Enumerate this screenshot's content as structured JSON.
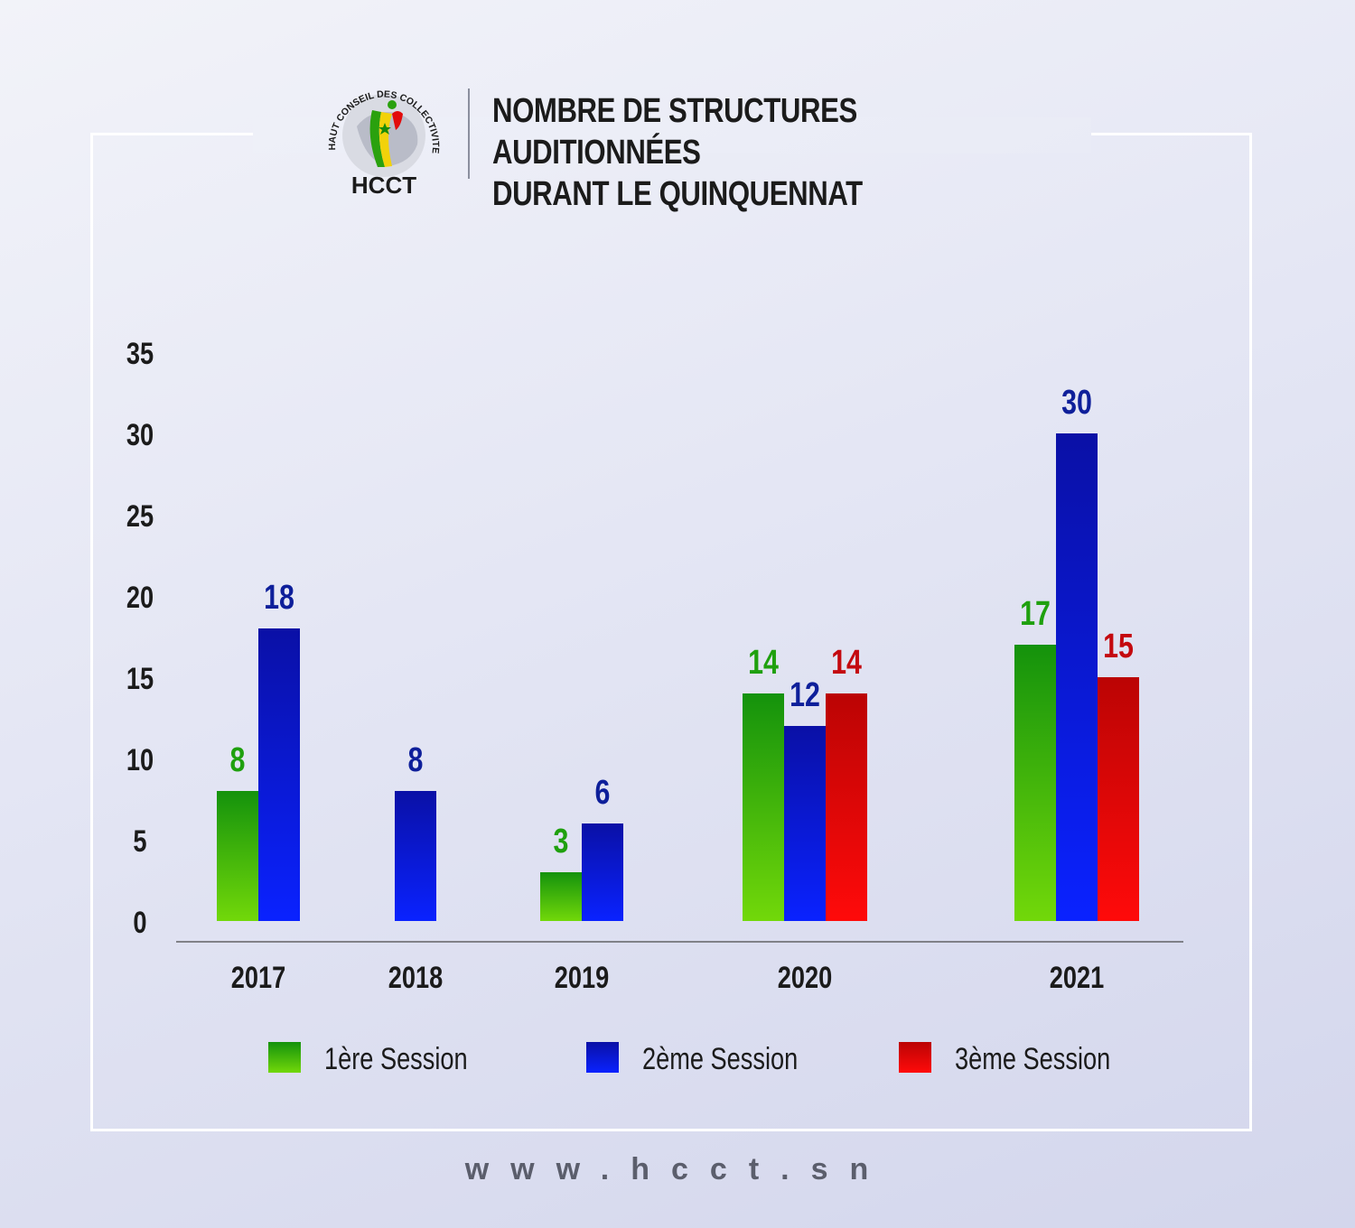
{
  "header": {
    "title_line1": "NOMBRE DE STRUCTURES AUDITIONNÉES",
    "title_line2": "DURANT LE QUINQUENNAT",
    "logo_text": "HCCT",
    "logo_ring_text": "HAUT CONSEIL DES COLLECTIVITES TERRITORIALES"
  },
  "colors": {
    "session1": "#2aa10e",
    "session2": "#0f1fd0",
    "session3": "#e20b0b",
    "label1": "#1fa00e",
    "label2": "#0e1f9a",
    "label3": "#c4090f"
  },
  "chart_data": {
    "type": "bar",
    "categories": [
      "2017",
      "2018",
      "2019",
      "2020",
      "2021"
    ],
    "series": [
      {
        "name": "1ère Session",
        "values": [
          8,
          null,
          3,
          14,
          17
        ]
      },
      {
        "name": "2ème Session",
        "values": [
          18,
          8,
          6,
          12,
          30
        ]
      },
      {
        "name": "3ème Session",
        "values": [
          null,
          null,
          null,
          14,
          15
        ]
      }
    ],
    "yticks": [
      0,
      5,
      10,
      15,
      20,
      25,
      30,
      35
    ],
    "ylim": [
      0,
      35
    ],
    "grid": false,
    "legend": "bottom"
  },
  "footer": {
    "url": "www.hcct.sn"
  }
}
